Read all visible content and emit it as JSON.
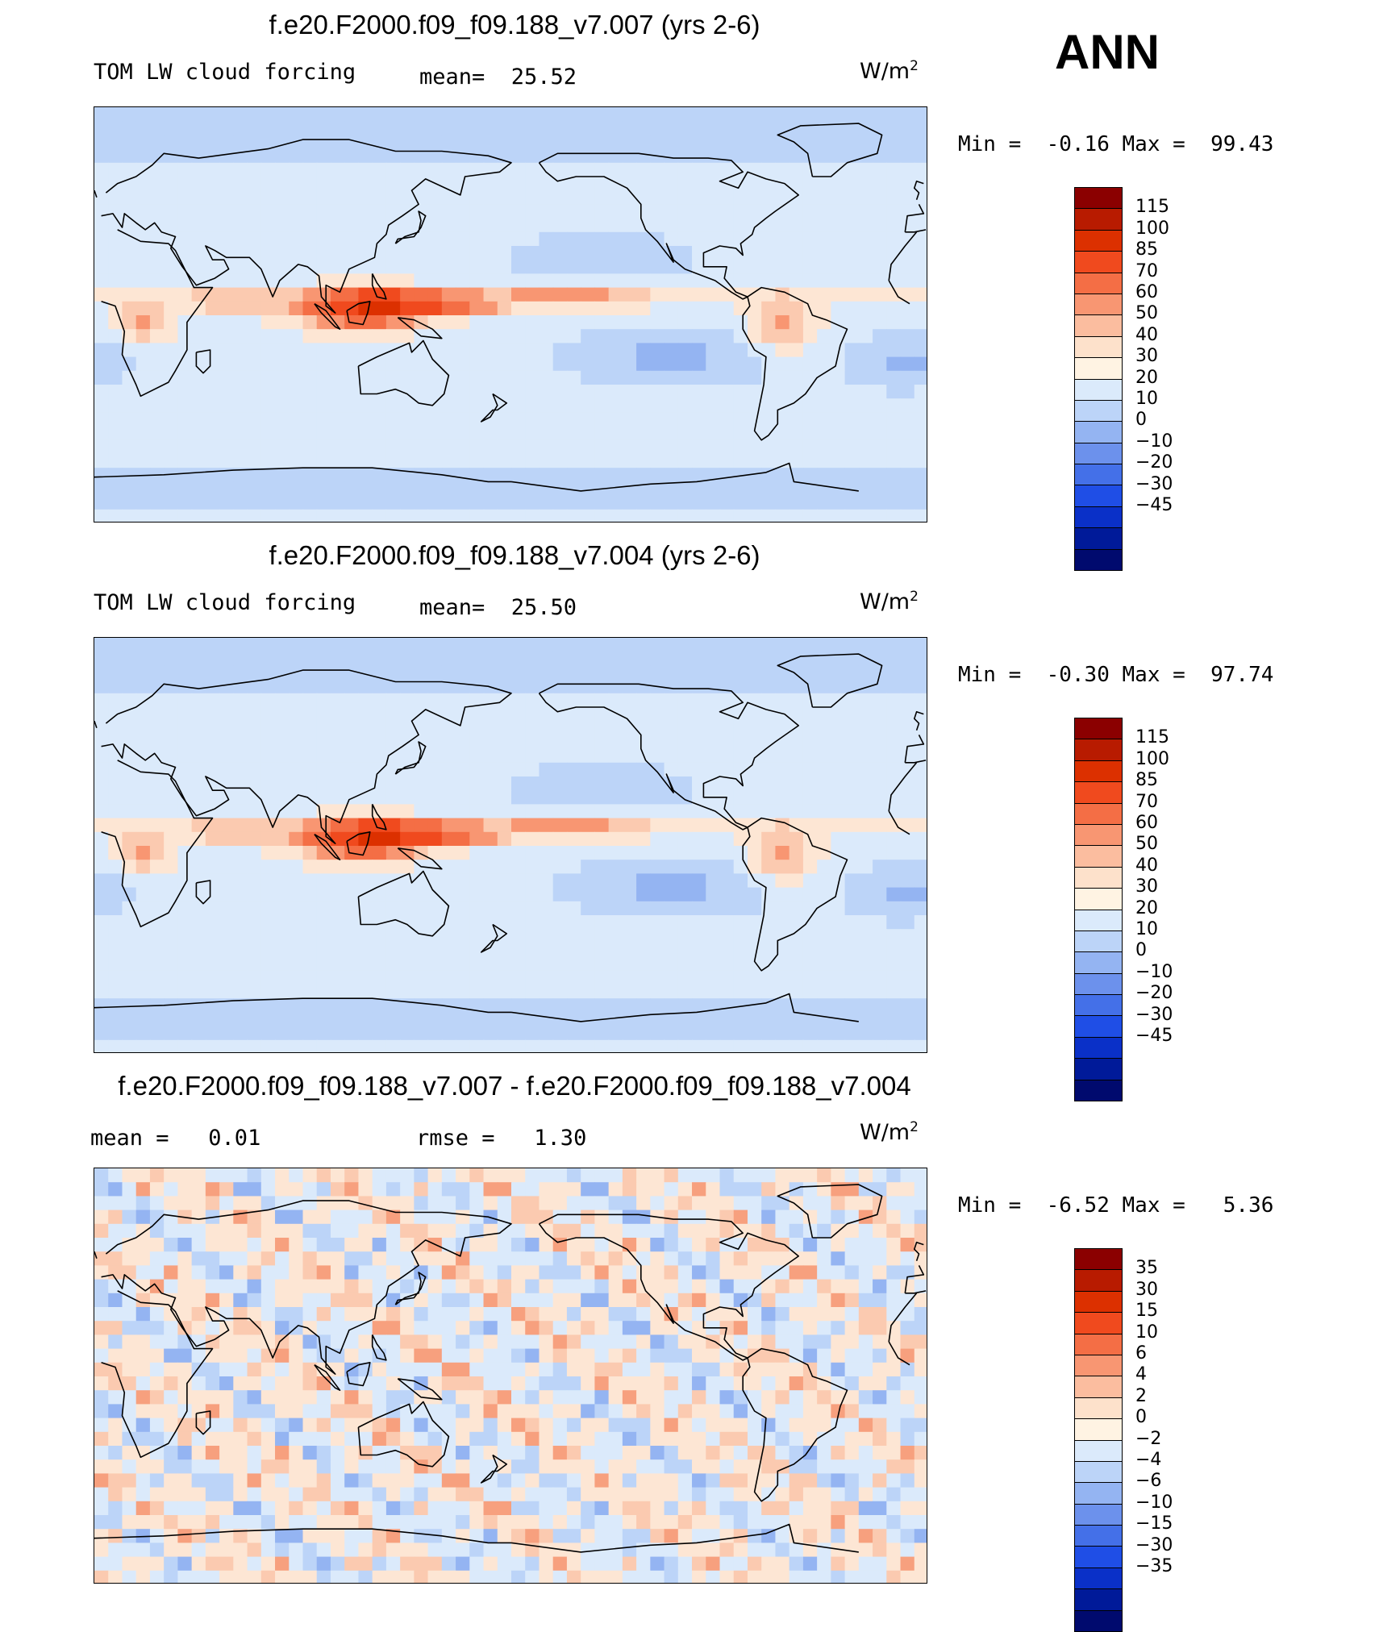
{
  "season": "ANN",
  "panels": [
    {
      "title": "f.e20.F2000.f09_f09.188_v7.007 (yrs 2-6)",
      "variable": "TOM LW cloud forcing",
      "stat_left": "mean=  25.52",
      "stat_right": "",
      "unit": "W/m",
      "unit_sup": "2",
      "min_label": "Min =",
      "min_value": "-0.16",
      "max_label": "Max =",
      "max_value": "99.43",
      "levels": [
        "115",
        "100",
        "85",
        "70",
        "60",
        "50",
        "40",
        "30",
        "20",
        "10",
        "0",
        "−10",
        "−20",
        "−30",
        "−45"
      ],
      "colors": [
        "#8b0000",
        "#b81b00",
        "#dc3000",
        "#f04a1e",
        "#f46e45",
        "#f89672",
        "#fbbd9f",
        "#fde1cb",
        "#fff3e3",
        "#dbeafb",
        "#bcd4f8",
        "#94b4f2",
        "#6c91ec",
        "#4470e8",
        "#1f4ee6",
        "#0a30c8",
        "#001a99",
        "#000a6e"
      ],
      "mode": "field"
    },
    {
      "title": "f.e20.F2000.f09_f09.188_v7.004 (yrs 2-6)",
      "variable": "TOM LW cloud forcing",
      "stat_left": "mean=  25.50",
      "stat_right": "",
      "unit": "W/m",
      "unit_sup": "2",
      "min_label": "Min =",
      "min_value": "-0.30",
      "max_label": "Max =",
      "max_value": "97.74",
      "levels": [
        "115",
        "100",
        "85",
        "70",
        "60",
        "50",
        "40",
        "30",
        "20",
        "10",
        "0",
        "−10",
        "−20",
        "−30",
        "−45"
      ],
      "colors": [
        "#8b0000",
        "#b81b00",
        "#dc3000",
        "#f04a1e",
        "#f46e45",
        "#f89672",
        "#fbbd9f",
        "#fde1cb",
        "#fff3e3",
        "#dbeafb",
        "#bcd4f8",
        "#94b4f2",
        "#6c91ec",
        "#4470e8",
        "#1f4ee6",
        "#0a30c8",
        "#001a99",
        "#000a6e"
      ],
      "mode": "field"
    },
    {
      "title": "f.e20.F2000.f09_f09.188_v7.007 - f.e20.F2000.f09_f09.188_v7.004",
      "variable": "",
      "stat_left": "mean =   0.01",
      "stat_right": "rmse =   1.30",
      "unit": "W/m",
      "unit_sup": "2",
      "min_label": "Min =",
      "min_value": "-6.52",
      "max_label": "Max =",
      "max_value": "5.36",
      "levels": [
        "35",
        "30",
        "15",
        "10",
        "6",
        "4",
        "2",
        "0",
        "−2",
        "−4",
        "−6",
        "−10",
        "−15",
        "−30",
        "−35"
      ],
      "colors": [
        "#8b0000",
        "#b81b00",
        "#dc3000",
        "#f04a1e",
        "#f46e45",
        "#f89672",
        "#fbbd9f",
        "#fde1cb",
        "#fff3e3",
        "#dbeafb",
        "#bcd4f8",
        "#94b4f2",
        "#6c91ec",
        "#4470e8",
        "#1f4ee6",
        "#0a30c8",
        "#001a99",
        "#000a6e"
      ],
      "mode": "diff"
    }
  ]
}
